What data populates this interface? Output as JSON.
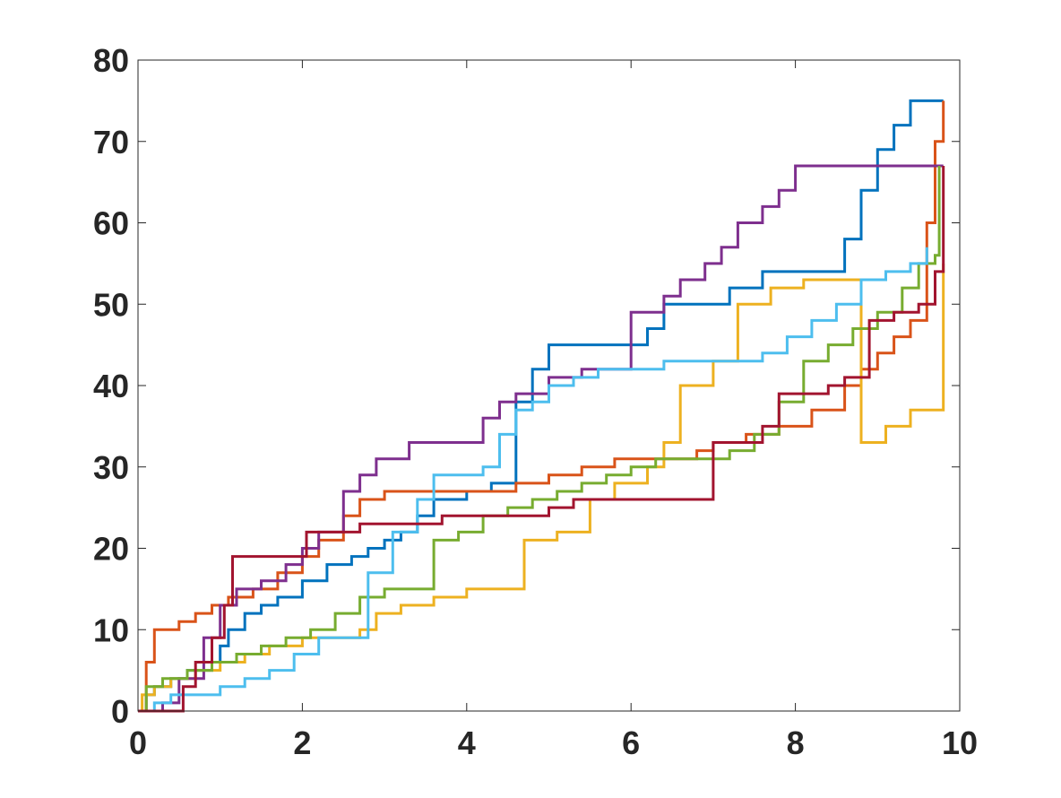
{
  "chart_data": {
    "type": "line",
    "title": "",
    "xlabel": "",
    "ylabel": "",
    "xlim": [
      0,
      10
    ],
    "ylim": [
      0,
      80
    ],
    "xticks": [
      0,
      2,
      4,
      6,
      8,
      10
    ],
    "yticks": [
      0,
      10,
      20,
      30,
      40,
      50,
      60,
      70,
      80
    ],
    "step": true,
    "grid": false,
    "series": [
      {
        "color": "#0072BD",
        "x": [
          0,
          0.1,
          0.2,
          0.4,
          0.6,
          0.9,
          1.0,
          1.1,
          1.3,
          1.5,
          1.7,
          2.0,
          2.3,
          2.6,
          2.8,
          3.0,
          3.2,
          3.4,
          3.6,
          4.0,
          4.3,
          4.6,
          4.8,
          5.0,
          5.2,
          5.5,
          5.8,
          6.2,
          6.4,
          6.6,
          6.8,
          7.2,
          7.6,
          8.0,
          8.4,
          8.6,
          8.8,
          9.0,
          9.2,
          9.4,
          9.6,
          9.8
        ],
        "y": [
          0,
          2,
          3,
          4,
          5,
          6,
          8,
          10,
          12,
          13,
          14,
          16,
          18,
          19,
          20,
          21,
          22,
          24,
          26,
          27,
          28,
          38,
          42,
          45,
          45,
          45,
          45,
          47,
          50,
          50,
          50,
          52,
          54,
          54,
          54,
          58,
          64,
          69,
          72,
          75,
          75,
          75
        ]
      },
      {
        "color": "#D95319",
        "x": [
          0,
          0.1,
          0.2,
          0.5,
          0.7,
          0.9,
          1.1,
          1.4,
          1.7,
          2.0,
          2.2,
          2.5,
          2.7,
          3.0,
          3.4,
          3.8,
          4.2,
          4.6,
          5.0,
          5.4,
          5.8,
          6.2,
          6.6,
          6.8,
          7.0,
          7.4,
          7.8,
          8.2,
          8.6,
          8.8,
          9.0,
          9.2,
          9.4,
          9.6,
          9.7,
          9.8
        ],
        "y": [
          0,
          6,
          10,
          11,
          12,
          13,
          14,
          15,
          17,
          19,
          21,
          24,
          26,
          27,
          27,
          27,
          27,
          28,
          29,
          30,
          31,
          31,
          31,
          32,
          33,
          34,
          35,
          37,
          40,
          42,
          44,
          46,
          48,
          60,
          70,
          75
        ]
      },
      {
        "color": "#EDB120",
        "x": [
          0,
          0.05,
          0.2,
          0.4,
          0.7,
          1.0,
          1.3,
          1.6,
          2.0,
          2.4,
          2.7,
          2.9,
          3.2,
          3.6,
          4.0,
          4.3,
          4.7,
          5.1,
          5.5,
          5.8,
          6.2,
          6.4,
          6.6,
          7.0,
          7.3,
          7.7,
          8.1,
          8.5,
          8.8,
          9.1,
          9.4,
          9.7,
          9.8
        ],
        "y": [
          0,
          2,
          3,
          4,
          5,
          6,
          7,
          8,
          9,
          9,
          10,
          12,
          13,
          14,
          15,
          15,
          21,
          22,
          26,
          28,
          30,
          33,
          40,
          43,
          50,
          52,
          53,
          53,
          33,
          35,
          37,
          37,
          55
        ]
      },
      {
        "color": "#7E2F8E",
        "x": [
          0,
          0.3,
          0.5,
          0.8,
          1.0,
          1.2,
          1.5,
          1.8,
          2.0,
          2.2,
          2.5,
          2.7,
          2.9,
          3.3,
          3.7,
          4.0,
          4.2,
          4.4,
          4.6,
          5.0,
          5.4,
          5.8,
          6.0,
          6.4,
          6.6,
          6.9,
          7.1,
          7.3,
          7.6,
          7.8,
          8.0,
          8.4,
          8.8,
          9.2,
          9.6,
          9.8
        ],
        "y": [
          0,
          1,
          4,
          9,
          13,
          15,
          16,
          18,
          20,
          22,
          27,
          29,
          31,
          33,
          33,
          33,
          36,
          38,
          39,
          41,
          42,
          42,
          49,
          51,
          53,
          55,
          57,
          60,
          62,
          64,
          67,
          67,
          67,
          67,
          67,
          67
        ]
      },
      {
        "color": "#77AC30",
        "x": [
          0,
          0.1,
          0.3,
          0.6,
          0.9,
          1.2,
          1.5,
          1.8,
          2.1,
          2.4,
          2.7,
          3.0,
          3.3,
          3.6,
          3.9,
          4.2,
          4.5,
          4.8,
          5.1,
          5.4,
          5.7,
          6.0,
          6.3,
          6.6,
          6.9,
          7.2,
          7.5,
          7.8,
          8.1,
          8.4,
          8.7,
          9.0,
          9.3,
          9.5,
          9.7,
          9.75
        ],
        "y": [
          0,
          3,
          4,
          5,
          6,
          7,
          8,
          9,
          10,
          12,
          14,
          15,
          15,
          21,
          22,
          24,
          25,
          26,
          27,
          28,
          29,
          30,
          31,
          31,
          31,
          32,
          34,
          38,
          43,
          45,
          47,
          49,
          52,
          55,
          56,
          67
        ]
      },
      {
        "color": "#4DBEEE",
        "x": [
          0,
          0.2,
          0.4,
          0.7,
          1.0,
          1.3,
          1.6,
          1.9,
          2.2,
          2.5,
          2.8,
          3.1,
          3.4,
          3.6,
          3.9,
          4.2,
          4.4,
          4.6,
          4.8,
          5.0,
          5.3,
          5.6,
          6.0,
          6.4,
          6.8,
          7.2,
          7.6,
          7.9,
          8.2,
          8.5,
          8.8,
          9.1,
          9.4,
          9.6
        ],
        "y": [
          0,
          1,
          2,
          2,
          3,
          4,
          5,
          7,
          9,
          9,
          17,
          22,
          26,
          29,
          29,
          30,
          34,
          37,
          38,
          40,
          41,
          42,
          42,
          43,
          43,
          43,
          44,
          46,
          48,
          50,
          53,
          54,
          55,
          57
        ]
      },
      {
        "color": "#A2142F",
        "x": [
          0,
          0.3,
          0.55,
          0.7,
          0.9,
          1.05,
          1.15,
          1.4,
          1.6,
          1.8,
          2.05,
          2.3,
          2.5,
          2.7,
          3.0,
          3.4,
          3.7,
          4.0,
          4.3,
          4.6,
          5.0,
          5.3,
          5.6,
          5.9,
          6.2,
          6.5,
          6.8,
          7.0,
          7.3,
          7.6,
          7.8,
          8.1,
          8.4,
          8.6,
          8.9,
          9.2,
          9.5,
          9.7,
          9.8
        ],
        "y": [
          0,
          0,
          3,
          6,
          9,
          13,
          19,
          19,
          19,
          19,
          22,
          22,
          22,
          23,
          23,
          23,
          24,
          24,
          24,
          24,
          25,
          26,
          26,
          26,
          26,
          26,
          26,
          33,
          33,
          35,
          39,
          39,
          40,
          41,
          48,
          49,
          50,
          54,
          67
        ]
      }
    ]
  }
}
